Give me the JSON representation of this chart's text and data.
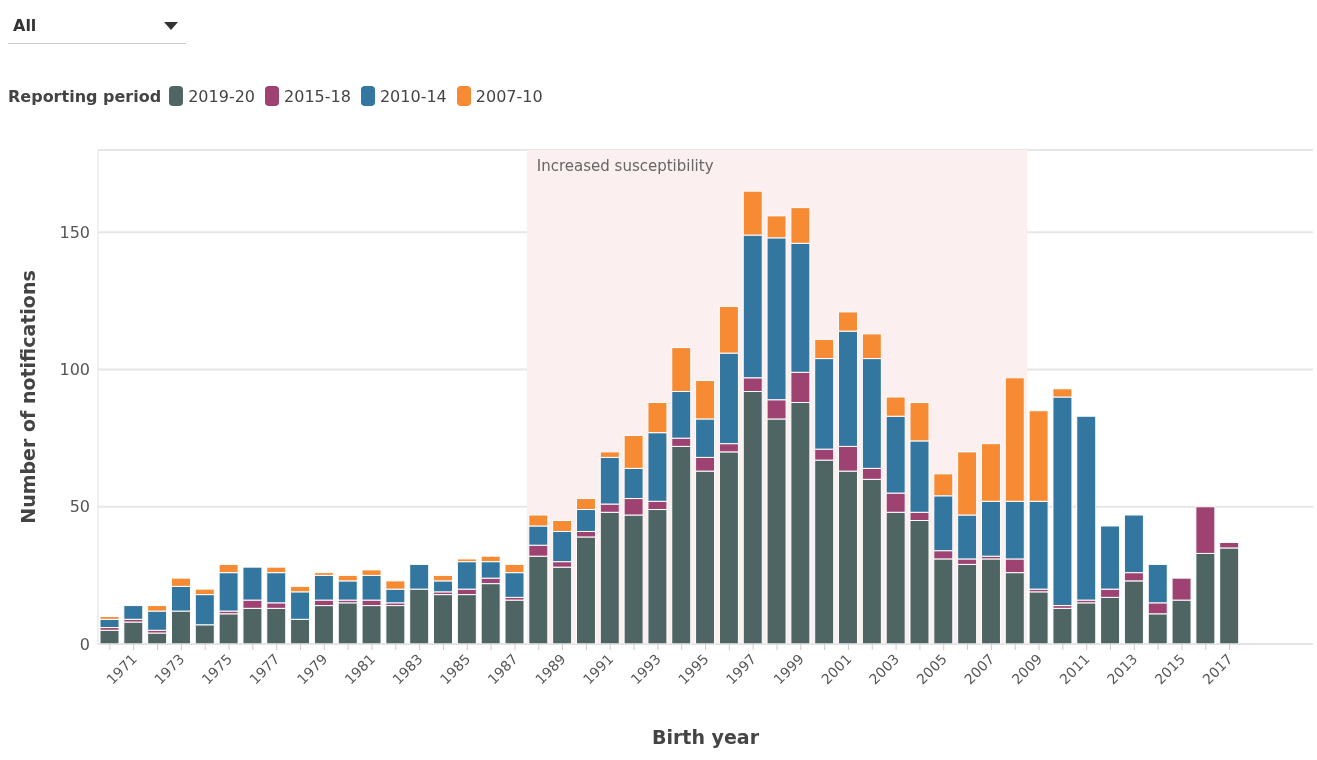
{
  "chart_data": {
    "type": "bar",
    "stacked": true,
    "xlabel": "Birth year",
    "ylabel": "Number of notifications",
    "legend_title": "Reporting period",
    "legend": "top left",
    "grid": "y",
    "annotations": [
      "All"
    ],
    "x": [
      1970,
      1971,
      1972,
      1973,
      1974,
      1975,
      1976,
      1977,
      1978,
      1979,
      1980,
      1981,
      1982,
      1983,
      1984,
      1985,
      1986,
      1987,
      1988,
      1989,
      1990,
      1991,
      1992,
      1993,
      1994,
      1995,
      1996,
      1997,
      1998,
      1999,
      2000,
      2001,
      2002,
      2003,
      2004,
      2005,
      2006,
      2007,
      2008,
      2009,
      2010,
      2011,
      2012,
      2013,
      2014,
      2015,
      2016,
      2017
    ],
    "xlim": [
      1969.5,
      2020.5
    ],
    "xticks": [
      {
        "value": 1970,
        "label": null
      },
      1971,
      {
        "value": 1972,
        "label": null
      },
      1973,
      {
        "value": 1974,
        "label": null
      },
      1975,
      {
        "value": 1976,
        "label": null
      },
      1977,
      {
        "value": 1978,
        "label": null
      },
      1979,
      {
        "value": 1980,
        "label": null
      },
      1981,
      {
        "value": 1982,
        "label": null
      },
      1983,
      {
        "value": 1984,
        "label": null
      },
      1985,
      {
        "value": 1986,
        "label": null
      },
      1987,
      {
        "value": 1988,
        "label": null
      },
      1989,
      {
        "value": 1990,
        "label": null
      },
      1991,
      {
        "value": 1992,
        "label": null
      },
      1993,
      {
        "value": 1994,
        "label": null
      },
      1995,
      {
        "value": 1996,
        "label": null
      },
      1997,
      {
        "value": 1998,
        "label": null
      },
      1999,
      {
        "value": 2000,
        "label": null
      },
      2001,
      {
        "value": 2002,
        "label": null
      },
      2003,
      {
        "value": 2004,
        "label": null
      },
      2005,
      {
        "value": 2006,
        "label": null
      },
      2007,
      {
        "value": 2008,
        "label": null
      },
      2009,
      {
        "value": 2010,
        "label": null
      },
      2011,
      {
        "value": 2012,
        "label": null
      },
      2013,
      {
        "value": 2014,
        "label": null
      },
      2015,
      {
        "value": 2016,
        "label": null
      },
      2017
    ],
    "ylim": [
      0,
      180
    ],
    "yticks": [
      0,
      50,
      100,
      150
    ],
    "bands": [
      {
        "axis": "x",
        "from": 1987.5,
        "to": 2008.5,
        "label": "Increased susceptibility",
        "color": "#fcefef"
      }
    ],
    "series": [
      {
        "name": "2019-20",
        "color": "#4f6563",
        "values": [
          5,
          8,
          4,
          12,
          7,
          11,
          13,
          13,
          9,
          14,
          15,
          14,
          14,
          20,
          18,
          18,
          22,
          16,
          32,
          28,
          39,
          48,
          47,
          49,
          72,
          63,
          70,
          92,
          82,
          88,
          67,
          63,
          60,
          48,
          45,
          31,
          29,
          31,
          26,
          19,
          13,
          15,
          17,
          23,
          11,
          16,
          33,
          35
        ]
      },
      {
        "name": "2015-18",
        "color": "#9e4272",
        "values": [
          1,
          1,
          1,
          0,
          0,
          1,
          3,
          2,
          0,
          2,
          1,
          2,
          1,
          0,
          1,
          2,
          2,
          1,
          4,
          2,
          2,
          3,
          6,
          3,
          3,
          5,
          3,
          5,
          7,
          11,
          4,
          9,
          4,
          7,
          3,
          3,
          2,
          1,
          5,
          1,
          1,
          1,
          3,
          3,
          4,
          8,
          17,
          2
        ]
      },
      {
        "name": "2010-14",
        "color": "#33769f",
        "values": [
          3,
          5,
          7,
          9,
          11,
          14,
          12,
          11,
          10,
          9,
          7,
          9,
          5,
          9,
          4,
          10,
          6,
          9,
          7,
          11,
          8,
          17,
          11,
          25,
          17,
          14,
          33,
          52,
          59,
          47,
          33,
          42,
          40,
          28,
          26,
          20,
          16,
          20,
          21,
          32,
          76,
          67,
          23,
          21,
          14,
          0,
          0,
          0
        ]
      },
      {
        "name": "2007-10",
        "color": "#f68b33",
        "values": [
          1,
          0,
          2,
          3,
          2,
          3,
          0,
          2,
          2,
          1,
          2,
          2,
          3,
          0,
          2,
          1,
          2,
          3,
          4,
          4,
          4,
          2,
          12,
          11,
          16,
          14,
          17,
          16,
          8,
          13,
          7,
          7,
          9,
          7,
          14,
          8,
          23,
          21,
          45,
          33,
          3,
          0,
          0,
          0,
          0,
          0,
          0,
          0
        ]
      }
    ]
  }
}
